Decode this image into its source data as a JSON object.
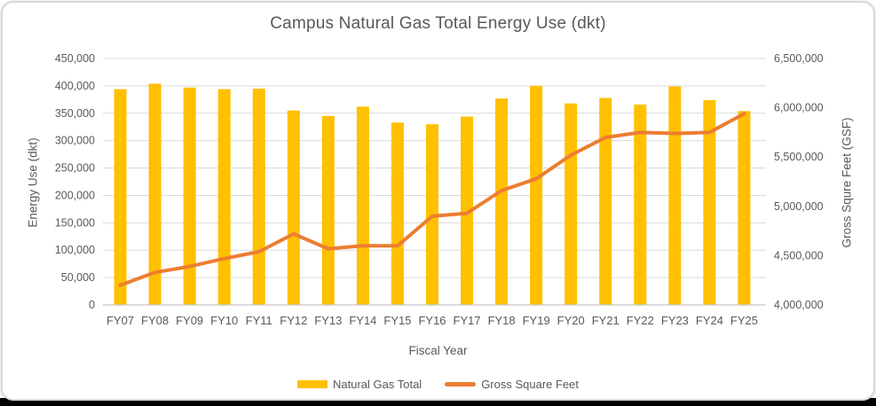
{
  "chart": {
    "title": "Campus Natural Gas Total Energy Use (dkt)",
    "x_axis": {
      "title": "Fiscal Year"
    },
    "left_axis": {
      "title": "Energy Use  (dkt)"
    },
    "right_axis": {
      "title": "Gross Squre Feet (GSF)"
    },
    "legend": {
      "bar_label": "Natural Gas Total",
      "line_label": "Gross Square Feet"
    },
    "colors": {
      "bar": "#FFC000",
      "line": "#ED7D31",
      "grid": "#D9D9D9",
      "axis_line": "#C6C6C6",
      "text": "#595959"
    }
  },
  "chart_data": {
    "type": "bar",
    "subtype": "combo bar+line, secondary axis",
    "title": "Campus Natural Gas Total Energy Use (dkt)",
    "xlabel": "Fiscal Year",
    "ylabel_left": "Energy Use  (dkt)",
    "ylabel_right": "Gross Squre Feet (GSF)",
    "grid": true,
    "legend_position": "bottom",
    "categories": [
      "FY07",
      "FY08",
      "FY09",
      "FY10",
      "FY11",
      "FY12",
      "FY13",
      "FY14",
      "FY15",
      "FY16",
      "FY17",
      "FY18",
      "FY19",
      "FY20",
      "FY21",
      "FY22",
      "FY23",
      "FY24",
      "FY25"
    ],
    "left_ylim": [
      0,
      450000
    ],
    "left_step": 50000,
    "right_ylim": [
      4000000,
      6500000
    ],
    "right_step": 500000,
    "series": [
      {
        "name": "Natural Gas Total",
        "type": "bar",
        "axis": "left",
        "values": [
          394000,
          404000,
          397000,
          394000,
          395000,
          355000,
          345000,
          362000,
          333000,
          330000,
          344000,
          377000,
          400000,
          368000,
          378000,
          366000,
          399000,
          374000,
          354000
        ]
      },
      {
        "name": "Gross Square Feet",
        "type": "line",
        "axis": "right",
        "values": [
          4200000,
          4330000,
          4390000,
          4470000,
          4540000,
          4720000,
          4570000,
          4600000,
          4600000,
          4900000,
          4930000,
          5160000,
          5280000,
          5520000,
          5700000,
          5750000,
          5740000,
          5750000,
          5940000
        ]
      }
    ]
  }
}
